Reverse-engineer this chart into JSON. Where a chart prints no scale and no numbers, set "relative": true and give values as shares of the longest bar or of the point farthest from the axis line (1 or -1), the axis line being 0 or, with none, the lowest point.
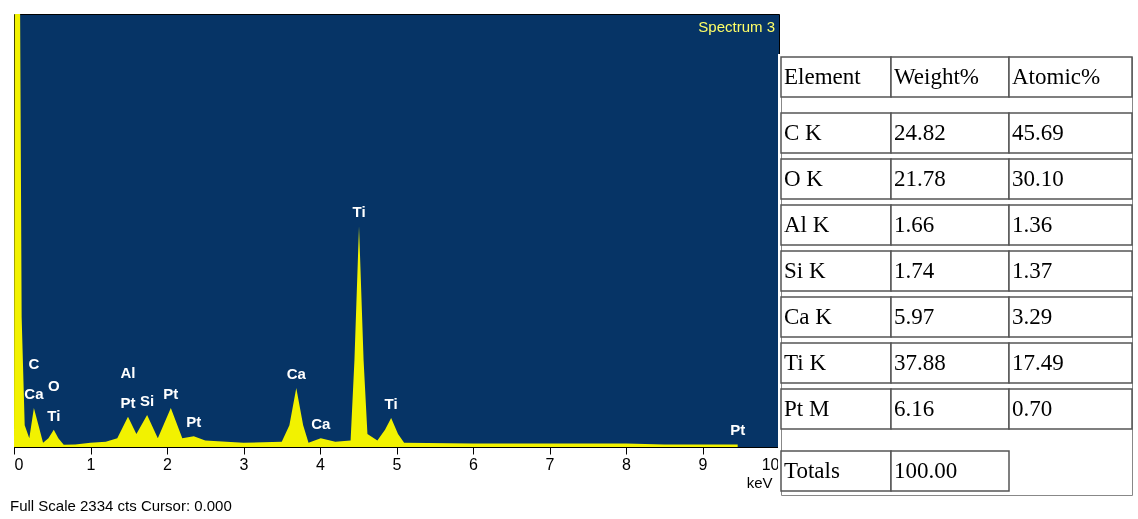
{
  "chart_data": [
    {
      "type": "area",
      "title": "Spectrum 3",
      "xlabel": "keV",
      "relative": true,
      "color": "#f2f200",
      "grid": false,
      "x": [
        0,
        0.01,
        0.03,
        0.08,
        0.1,
        0.14,
        0.2,
        0.26,
        0.32,
        0.38,
        0.45,
        0.52,
        0.58,
        0.65,
        0.8,
        1.0,
        1.2,
        1.35,
        1.49,
        1.6,
        1.74,
        1.88,
        2.05,
        2.2,
        2.35,
        2.5,
        3.0,
        3.5,
        3.6,
        3.69,
        3.78,
        3.85,
        4.01,
        4.2,
        4.4,
        4.45,
        4.51,
        4.57,
        4.62,
        4.75,
        4.85,
        4.93,
        5.02,
        5.1,
        6.0,
        7.0,
        8.0,
        8.5,
        9.0,
        9.46
      ],
      "values": [
        0,
        1,
        1,
        1,
        0.3,
        0.05,
        0.02,
        0.09,
        0.05,
        0.01,
        0.02,
        0.04,
        0.02,
        0.005,
        0.006,
        0.01,
        0.012,
        0.02,
        0.07,
        0.03,
        0.074,
        0.02,
        0.09,
        0.02,
        0.025,
        0.015,
        0.01,
        0.012,
        0.05,
        0.136,
        0.05,
        0.01,
        0.02,
        0.012,
        0.015,
        0.2,
        0.51,
        0.2,
        0.03,
        0.015,
        0.04,
        0.067,
        0.03,
        0.01,
        0.008,
        0.008,
        0.008,
        0.006,
        0.006,
        0.006
      ],
      "xlim": [
        0,
        10
      ],
      "xticks": [
        0,
        1,
        2,
        3,
        4,
        5,
        6,
        7,
        8,
        9,
        10
      ],
      "annotations": [
        {
          "text": "Ca",
          "x": 0.26,
          "y": 0.09
        },
        {
          "text": "C",
          "x": 0.26,
          "y": 0.09
        },
        {
          "text": "Ti",
          "x": 0.52,
          "y": 0.04
        },
        {
          "text": "O",
          "x": 0.52,
          "y": 0.04
        },
        {
          "text": "Pt",
          "x": 1.49,
          "y": 0.07
        },
        {
          "text": "Al",
          "x": 1.49,
          "y": 0.07
        },
        {
          "text": "Si",
          "x": 1.74,
          "y": 0.074
        },
        {
          "text": "Pt",
          "x": 2.05,
          "y": 0.09
        },
        {
          "text": "Pt",
          "x": 2.35,
          "y": 0.025
        },
        {
          "text": "Ca",
          "x": 3.69,
          "y": 0.136
        },
        {
          "text": "Ca",
          "x": 4.01,
          "y": 0.02
        },
        {
          "text": "Ti",
          "x": 4.51,
          "y": 0.51
        },
        {
          "text": "Ti",
          "x": 4.93,
          "y": 0.067
        },
        {
          "text": "Pt",
          "x": 9.46,
          "y": 0.006
        },
        "Full Scale 2334 cts Cursor: 0.000"
      ]
    },
    {
      "type": "other",
      "ylabel": "Element",
      "categories": [
        "Weight%",
        "Atomic%"
      ],
      "y_categories": [
        "C K",
        "O K",
        "Al K",
        "Si K",
        "Ca K",
        "Ti K",
        "Pt M",
        "Totals"
      ],
      "cell_labels": [
        [
          "24.82",
          "45.69"
        ],
        [
          "21.78",
          "30.10"
        ],
        [
          "1.66",
          "1.36"
        ],
        [
          "1.74",
          "1.37"
        ],
        [
          "5.97",
          "3.29"
        ],
        [
          "37.88",
          "17.49"
        ],
        [
          "6.16",
          "0.70"
        ],
        [
          "100.00",
          null
        ]
      ]
    }
  ]
}
